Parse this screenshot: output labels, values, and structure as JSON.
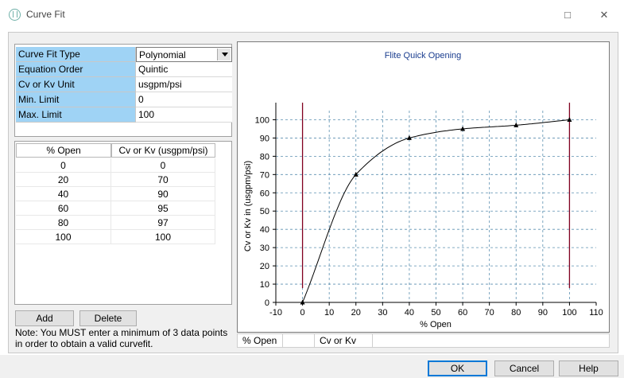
{
  "window": {
    "title": "Curve Fit",
    "minimize_glyph": "□",
    "close_glyph": "✕"
  },
  "properties": [
    {
      "label": "Curve Fit Type",
      "value": "Polynomial",
      "type": "select"
    },
    {
      "label": "Equation Order",
      "value": "Quintic"
    },
    {
      "label": "Cv or Kv Unit",
      "value": "usgpm/psi"
    },
    {
      "label": "Min. Limit",
      "value": "0"
    },
    {
      "label": "Max. Limit",
      "value": "100"
    }
  ],
  "grid": {
    "headers": [
      "% Open",
      "Cv or Kv (usgpm/psi)"
    ],
    "rows": [
      [
        "0",
        "0"
      ],
      [
        "20",
        "70"
      ],
      [
        "40",
        "90"
      ],
      [
        "60",
        "95"
      ],
      [
        "80",
        "97"
      ],
      [
        "100",
        "100"
      ]
    ]
  },
  "buttons": {
    "add": "Add",
    "delete": "Delete",
    "ok": "OK",
    "cancel": "Cancel",
    "help": "Help"
  },
  "note": "Note: You MUST enter a minimum of 3 data points in order to obtain a valid curvefit.",
  "strip": {
    "col1": "% Open",
    "col2": "Cv or Kv"
  },
  "chart_data": {
    "type": "line",
    "title": "Flite Quick Opening",
    "xlabel": "% Open",
    "ylabel": "Cv or Kv in (usgpm/psi)",
    "xlim": [
      -10,
      110
    ],
    "ylim": [
      0,
      105
    ],
    "xticks": [
      -10,
      0,
      10,
      20,
      30,
      40,
      50,
      60,
      70,
      80,
      90,
      100,
      110
    ],
    "yticks": [
      0,
      10,
      20,
      30,
      40,
      50,
      60,
      70,
      80,
      90,
      100
    ],
    "grid": true,
    "points": {
      "x": [
        0,
        20,
        40,
        60,
        80,
        100
      ],
      "y": [
        0,
        70,
        90,
        95,
        97,
        100
      ]
    },
    "limits": [
      0,
      100
    ],
    "colors": {
      "curve": "#000000",
      "limits": "#800020",
      "grid": "#5b8fb0",
      "title": "#1a3d8f"
    }
  }
}
